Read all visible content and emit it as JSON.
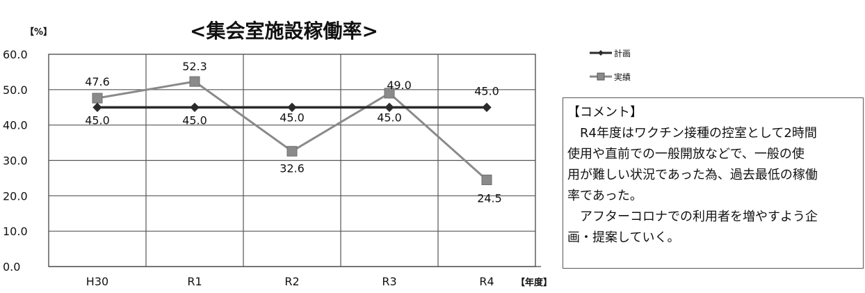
{
  "chart_data": {
    "type": "line",
    "title": "<集会室施設稼働率>",
    "ylabel": "【%】",
    "xlabel": "【年度】",
    "categories": [
      "H30",
      "R1",
      "R2",
      "R3",
      "R4"
    ],
    "ylim": [
      0,
      60
    ],
    "yticks": [
      0,
      10,
      20,
      30,
      40,
      50,
      60
    ],
    "ytick_labels": [
      "0.0",
      "10.0",
      "20.0",
      "30.0",
      "40.0",
      "50.0",
      "60.0"
    ],
    "grid": true,
    "legend_position": "right",
    "series": [
      {
        "name": "計画",
        "values": [
          45.0,
          45.0,
          45.0,
          45.0,
          45.0
        ],
        "labels": [
          "45.0",
          "45.0",
          "45.0",
          "45.0",
          "45.0"
        ],
        "color": "#2b2b2b",
        "marker": "diamond"
      },
      {
        "name": "実績",
        "values": [
          47.6,
          52.3,
          32.6,
          49.0,
          24.5
        ],
        "labels": [
          "47.6",
          "52.3",
          "32.6",
          "49.0",
          "24.5"
        ],
        "color": "#8a8a8a",
        "marker": "square"
      }
    ]
  },
  "comment": {
    "heading": "【コメント】",
    "lines": [
      "R4年度はワクチン接種の控室として2時間",
      "使用や直前での一般開放などで、一般の使",
      "用が難しい状況であった為、過去最低の稼働",
      "率であった。",
      "アフターコロナでの利用者を増やすよう企",
      "画・提案していく。"
    ]
  }
}
